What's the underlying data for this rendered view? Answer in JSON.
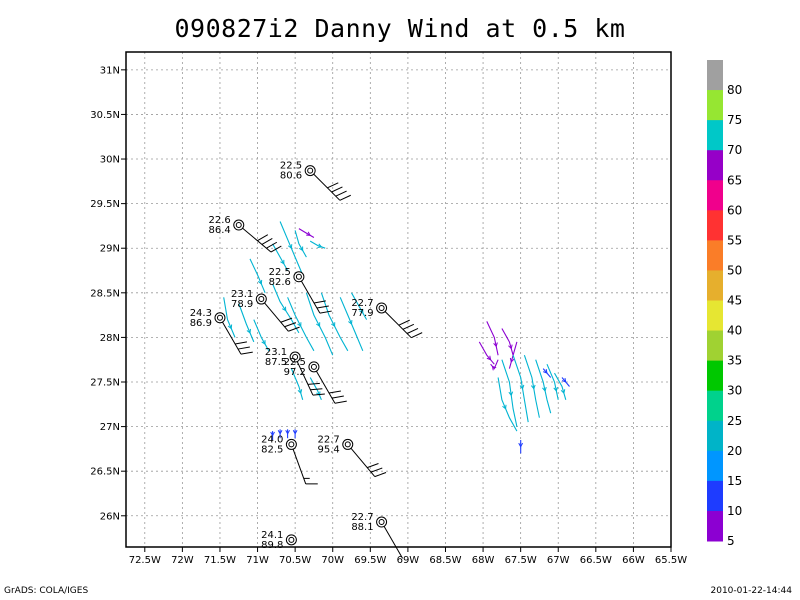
{
  "title": "090827i2 Danny Wind at 0.5 km",
  "footer": {
    "left": "GrADS: COLA/IGES",
    "right": "2010-01-22-14:44"
  },
  "map": {
    "lon_range": [
      -72.75,
      -65.5
    ],
    "lat_range": [
      25.65,
      31.2
    ],
    "lon_ticks": [
      {
        "v": -72.5,
        "label": "72.5W"
      },
      {
        "v": -72,
        "label": "72W"
      },
      {
        "v": -71.5,
        "label": "71.5W"
      },
      {
        "v": -71,
        "label": "71W"
      },
      {
        "v": -70.5,
        "label": "70.5W"
      },
      {
        "v": -70,
        "label": "70W"
      },
      {
        "v": -69.5,
        "label": "69.5W"
      },
      {
        "v": -69,
        "label": "69W"
      },
      {
        "v": -68.5,
        "label": "68.5W"
      },
      {
        "v": -68,
        "label": "68W"
      },
      {
        "v": -67.5,
        "label": "67.5W"
      },
      {
        "v": -67,
        "label": "67W"
      },
      {
        "v": -66.5,
        "label": "66.5W"
      },
      {
        "v": -66,
        "label": "66W"
      },
      {
        "v": -65.5,
        "label": "65.5W"
      }
    ],
    "lat_ticks": [
      {
        "v": 26,
        "label": "26N"
      },
      {
        "v": 26.5,
        "label": "26.5N"
      },
      {
        "v": 27,
        "label": "27N"
      },
      {
        "v": 27.5,
        "label": "27.5N"
      },
      {
        "v": 28,
        "label": "28N"
      },
      {
        "v": 28.5,
        "label": "28.5N"
      },
      {
        "v": 29,
        "label": "29N"
      },
      {
        "v": 29.5,
        "label": "29.5N"
      },
      {
        "v": 30,
        "label": "30N"
      },
      {
        "v": 30.5,
        "label": "30.5N"
      },
      {
        "v": 31,
        "label": "31N"
      }
    ],
    "grid": true
  },
  "stations": [
    {
      "lon": -70.3,
      "lat": 29.87,
      "t": "22.5",
      "d": "80.6",
      "dir": 315,
      "barbs": [
        1,
        1,
        1,
        1
      ]
    },
    {
      "lon": -71.25,
      "lat": 29.26,
      "t": "22.6",
      "d": "86.4",
      "dir": 310,
      "barbs": [
        1,
        1,
        1,
        1
      ]
    },
    {
      "lon": -70.45,
      "lat": 28.68,
      "t": "22.5",
      "d": "82.6",
      "dir": 330,
      "barbs": [
        1,
        1,
        1
      ]
    },
    {
      "lon": -70.95,
      "lat": 28.43,
      "t": "23.1",
      "d": "78.9",
      "dir": 320,
      "barbs": [
        1,
        1,
        1
      ]
    },
    {
      "lon": -71.5,
      "lat": 28.22,
      "t": "24.3",
      "d": "86.9",
      "dir": 330,
      "barbs": [
        1,
        1,
        1
      ]
    },
    {
      "lon": -69.35,
      "lat": 28.33,
      "t": "22.7",
      "d": "77.9",
      "dir": 315,
      "barbs": [
        1,
        1,
        1,
        1
      ]
    },
    {
      "lon": -70.5,
      "lat": 27.78,
      "t": "23.1",
      "d": "87.5",
      "dir": 335,
      "barbs": [
        1,
        1,
        1
      ]
    },
    {
      "lon": -70.25,
      "lat": 27.67,
      "t": "22.5",
      "d": "97.2",
      "dir": 330,
      "barbs": [
        1,
        1,
        1
      ]
    },
    {
      "lon": -70.55,
      "lat": 26.8,
      "t": "24.0",
      "d": "82.5",
      "dir": 340,
      "barbs": [
        1,
        0.5
      ]
    },
    {
      "lon": -69.8,
      "lat": 26.8,
      "t": "22.7",
      "d": "95.4",
      "dir": 320,
      "barbs": [
        1,
        1,
        1
      ]
    },
    {
      "lon": -69.35,
      "lat": 25.93,
      "t": "22.7",
      "d": "88.1",
      "dir": 330,
      "barbs": []
    },
    {
      "lon": -70.55,
      "lat": 25.73,
      "t": "24.1",
      "d": "89.8",
      "dir": 0,
      "barbs": []
    }
  ],
  "streamlines": [
    {
      "c": "#00b4d2",
      "pts": [
        [
          -70.7,
          29.3
        ],
        [
          -70.6,
          29.1
        ],
        [
          -70.5,
          28.9
        ],
        [
          -70.4,
          28.7
        ]
      ]
    },
    {
      "c": "#00b4d2",
      "pts": [
        [
          -70.5,
          29.2
        ],
        [
          -70.45,
          29.05
        ],
        [
          -70.35,
          28.9
        ]
      ]
    },
    {
      "c": "#00b4d2",
      "pts": [
        [
          -70.8,
          29.05
        ],
        [
          -70.7,
          28.9
        ],
        [
          -70.6,
          28.75
        ]
      ]
    },
    {
      "c": "#8c00d2",
      "pts": [
        [
          -70.45,
          29.22
        ],
        [
          -70.35,
          29.17
        ],
        [
          -70.25,
          29.12
        ]
      ]
    },
    {
      "c": "#00b4d2",
      "pts": [
        [
          -70.3,
          29.08
        ],
        [
          -70.2,
          29.03
        ],
        [
          -70.1,
          29.0
        ]
      ]
    },
    {
      "c": "#00b4d2",
      "pts": [
        [
          -71.1,
          28.88
        ],
        [
          -71.0,
          28.7
        ],
        [
          -70.9,
          28.5
        ]
      ]
    },
    {
      "c": "#00b4d2",
      "pts": [
        [
          -70.8,
          28.6
        ],
        [
          -70.7,
          28.4
        ],
        [
          -70.55,
          28.2
        ],
        [
          -70.45,
          28.05
        ]
      ]
    },
    {
      "c": "#00b4d2",
      "pts": [
        [
          -71.45,
          28.45
        ],
        [
          -71.4,
          28.2
        ],
        [
          -71.3,
          28.0
        ]
      ]
    },
    {
      "c": "#00b4d2",
      "pts": [
        [
          -71.25,
          28.38
        ],
        [
          -71.15,
          28.15
        ],
        [
          -71.05,
          27.95
        ]
      ]
    },
    {
      "c": "#00b4d2",
      "pts": [
        [
          -71.05,
          28.2
        ],
        [
          -70.95,
          28.0
        ],
        [
          -70.85,
          27.85
        ]
      ]
    },
    {
      "c": "#00b4d2",
      "pts": [
        [
          -70.6,
          28.45
        ],
        [
          -70.5,
          28.25
        ],
        [
          -70.35,
          28.0
        ],
        [
          -70.25,
          27.85
        ]
      ]
    },
    {
      "c": "#00b4d2",
      "pts": [
        [
          -70.35,
          28.5
        ],
        [
          -70.25,
          28.25
        ],
        [
          -70.1,
          28.0
        ],
        [
          -70.0,
          27.8
        ]
      ]
    },
    {
      "c": "#00b4d2",
      "pts": [
        [
          -70.15,
          28.5
        ],
        [
          -70.05,
          28.25
        ],
        [
          -69.9,
          28.0
        ],
        [
          -69.8,
          27.85
        ]
      ]
    },
    {
      "c": "#00b4d2",
      "pts": [
        [
          -69.9,
          28.45
        ],
        [
          -69.8,
          28.25
        ],
        [
          -69.7,
          28.05
        ],
        [
          -69.6,
          27.85
        ]
      ]
    },
    {
      "c": "#00b4d2",
      "pts": [
        [
          -69.75,
          28.5
        ],
        [
          -69.65,
          28.35
        ],
        [
          -69.55,
          28.2
        ]
      ]
    },
    {
      "c": "#00b4d2",
      "pts": [
        [
          -70.55,
          27.65
        ],
        [
          -70.45,
          27.45
        ],
        [
          -70.4,
          27.3
        ]
      ]
    },
    {
      "c": "#00b4d2",
      "pts": [
        [
          -70.3,
          27.55
        ],
        [
          -70.2,
          27.4
        ],
        [
          -70.15,
          27.3
        ]
      ]
    },
    {
      "c": "#1e3cff",
      "pts": [
        [
          -70.8,
          26.95
        ],
        [
          -70.8,
          26.85
        ]
      ]
    },
    {
      "c": "#1e3cff",
      "pts": [
        [
          -70.7,
          26.97
        ],
        [
          -70.7,
          26.87
        ]
      ]
    },
    {
      "c": "#1e3cff",
      "pts": [
        [
          -70.6,
          26.97
        ],
        [
          -70.6,
          26.87
        ]
      ]
    },
    {
      "c": "#1e3cff",
      "pts": [
        [
          -70.5,
          26.97
        ],
        [
          -70.5,
          26.87
        ]
      ]
    },
    {
      "c": "#8c00d2",
      "pts": [
        [
          -67.95,
          28.18
        ],
        [
          -67.85,
          28.0
        ],
        [
          -67.8,
          27.8
        ]
      ]
    },
    {
      "c": "#8c00d2",
      "pts": [
        [
          -67.75,
          28.1
        ],
        [
          -67.65,
          27.95
        ],
        [
          -67.6,
          27.8
        ]
      ]
    },
    {
      "c": "#8c00d2",
      "pts": [
        [
          -67.55,
          27.95
        ],
        [
          -67.6,
          27.8
        ],
        [
          -67.65,
          27.65
        ]
      ]
    },
    {
      "c": "#8c00d2",
      "pts": [
        [
          -68.05,
          27.95
        ],
        [
          -67.95,
          27.8
        ],
        [
          -67.85,
          27.7
        ]
      ]
    },
    {
      "c": "#8c00d2",
      "pts": [
        [
          -67.8,
          27.75
        ],
        [
          -67.85,
          27.65
        ],
        [
          -67.9,
          27.7
        ]
      ]
    },
    {
      "c": "#00b4d2",
      "pts": [
        [
          -67.75,
          27.75
        ],
        [
          -67.65,
          27.5
        ],
        [
          -67.6,
          27.2
        ],
        [
          -67.55,
          27.0
        ]
      ]
    },
    {
      "c": "#00b4d2",
      "pts": [
        [
          -67.6,
          27.8
        ],
        [
          -67.5,
          27.55
        ],
        [
          -67.45,
          27.3
        ],
        [
          -67.4,
          27.05
        ]
      ]
    },
    {
      "c": "#00b4d2",
      "pts": [
        [
          -67.45,
          27.8
        ],
        [
          -67.35,
          27.55
        ],
        [
          -67.3,
          27.3
        ],
        [
          -67.25,
          27.1
        ]
      ]
    },
    {
      "c": "#00b4d2",
      "pts": [
        [
          -67.3,
          27.75
        ],
        [
          -67.2,
          27.5
        ],
        [
          -67.15,
          27.3
        ],
        [
          -67.1,
          27.15
        ]
      ]
    },
    {
      "c": "#00b4d2",
      "pts": [
        [
          -67.15,
          27.7
        ],
        [
          -67.05,
          27.5
        ],
        [
          -67.0,
          27.3
        ]
      ]
    },
    {
      "c": "#00b4d2",
      "pts": [
        [
          -67.05,
          27.6
        ],
        [
          -66.95,
          27.45
        ],
        [
          -66.9,
          27.3
        ]
      ]
    },
    {
      "c": "#00b4d2",
      "pts": [
        [
          -67.8,
          27.55
        ],
        [
          -67.75,
          27.3
        ],
        [
          -67.65,
          27.1
        ],
        [
          -67.55,
          26.95
        ]
      ]
    },
    {
      "c": "#1e3cff",
      "pts": [
        [
          -67.5,
          26.85
        ],
        [
          -67.5,
          26.7
        ]
      ]
    },
    {
      "c": "#1e3cff",
      "pts": [
        [
          -67.2,
          27.65
        ],
        [
          -67.1,
          27.55
        ]
      ]
    },
    {
      "c": "#1e3cff",
      "pts": [
        [
          -66.95,
          27.55
        ],
        [
          -66.85,
          27.45
        ]
      ]
    }
  ],
  "colorbar": {
    "colors": [
      "#a0a0a0",
      "#96e632",
      "#00c8c8",
      "#9600c8",
      "#f0008c",
      "#ff3232",
      "#fa7d28",
      "#e6af2d",
      "#e6e632",
      "#a0d232",
      "#00c800",
      "#00d28c",
      "#00b4c8",
      "#0096ff",
      "#1e3cff",
      "#8c00d2"
    ],
    "labels": [
      "80",
      "75",
      "70",
      "65",
      "60",
      "55",
      "50",
      "45",
      "40",
      "35",
      "30",
      "25",
      "20",
      "15",
      "10",
      "5"
    ]
  }
}
